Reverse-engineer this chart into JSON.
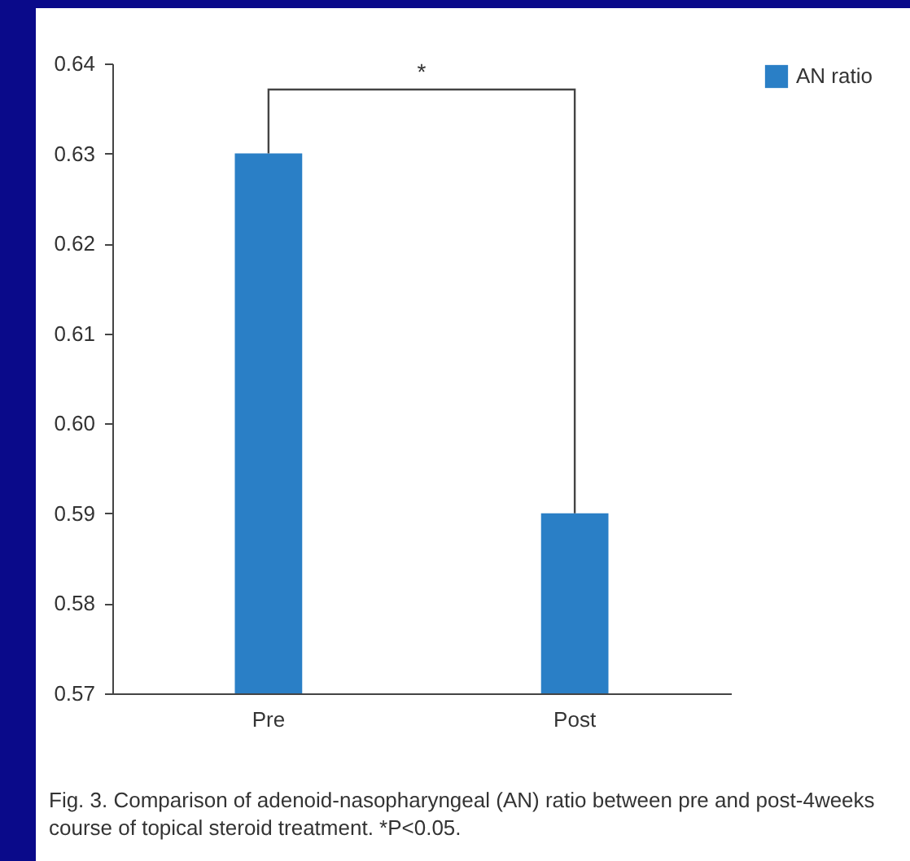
{
  "chart_data": {
    "type": "bar",
    "categories": [
      "Pre",
      "Post"
    ],
    "series": [
      {
        "name": "AN ratio",
        "color": "#2a7fc6",
        "values": [
          0.63,
          0.59
        ]
      }
    ],
    "ylim": [
      0.57,
      0.64
    ],
    "yticks": [
      0.57,
      0.58,
      0.59,
      {
        "value": 0.6,
        "label": "0.60"
      },
      0.61,
      0.62,
      0.63,
      0.64
    ],
    "grid": false,
    "legend": "top right",
    "annotations": [
      "*",
      "Fig. 3. Comparison of adenoid-nasopharyngeal (AN) ratio between pre and post-4weeks course of topical steroid treatment. *P<0.05."
    ]
  }
}
